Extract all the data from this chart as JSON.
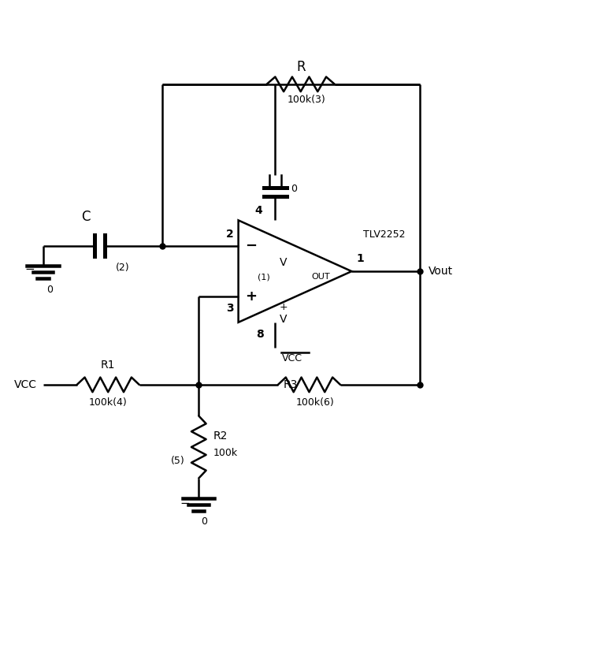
{
  "bg_color": "#ffffff",
  "line_color": "#000000",
  "line_width": 1.8,
  "figsize": [
    7.49,
    8.32
  ],
  "dpi": 100,
  "xlim": [
    0,
    10
  ],
  "ylim": [
    0,
    11
  ]
}
